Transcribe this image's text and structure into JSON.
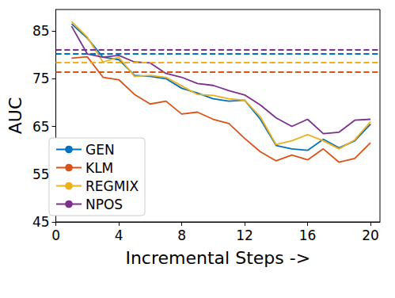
{
  "chart_data": {
    "type": "line",
    "x_label": "Incremental Steps ->",
    "y_label": "AUC",
    "x": [
      1,
      2,
      3,
      4,
      5,
      6,
      7,
      8,
      9,
      10,
      11,
      12,
      13,
      14,
      15,
      16,
      17,
      18,
      19,
      20
    ],
    "series": [
      {
        "name": "GEN",
        "color": "#0072BD",
        "baseline": 80.2,
        "values": [
          86.5,
          83.5,
          79.5,
          79.0,
          75.7,
          75.5,
          75.0,
          73.0,
          72.0,
          70.8,
          70.3,
          70.5,
          66.5,
          61.0,
          60.3,
          60.0,
          62.3,
          60.5,
          62.0,
          65.5
        ]
      },
      {
        "name": "KLM",
        "color": "#D95319",
        "baseline": 76.4,
        "values": [
          79.3,
          79.6,
          75.3,
          74.8,
          71.7,
          69.7,
          70.3,
          67.6,
          68.0,
          66.5,
          65.6,
          62.5,
          59.7,
          57.8,
          59.0,
          58.0,
          60.3,
          57.5,
          58.3,
          61.6
        ]
      },
      {
        "name": "REGMIX",
        "color": "#EDB120",
        "baseline": 78.4,
        "values": [
          87.0,
          83.7,
          78.5,
          79.5,
          75.5,
          75.7,
          75.3,
          73.5,
          71.7,
          71.5,
          70.8,
          70.5,
          67.0,
          61.2,
          62.0,
          63.3,
          62.0,
          60.3,
          62.2,
          66.0
        ]
      },
      {
        "name": "NPOS",
        "color": "#7E2F8E",
        "baseline": 81.0,
        "values": [
          86.0,
          80.2,
          79.5,
          79.9,
          78.5,
          78.3,
          76.1,
          75.3,
          74.0,
          73.6,
          72.5,
          71.6,
          69.5,
          66.8,
          65.0,
          66.5,
          63.5,
          63.8,
          66.3,
          66.5
        ]
      }
    ],
    "xlim": [
      0,
      20.6
    ],
    "xticks": [
      0,
      4,
      8,
      12,
      16,
      20
    ],
    "ylim": [
      45,
      89.5
    ],
    "yticks": [
      45,
      55,
      65,
      75,
      85
    ],
    "grid": false,
    "legend": "lower left"
  }
}
